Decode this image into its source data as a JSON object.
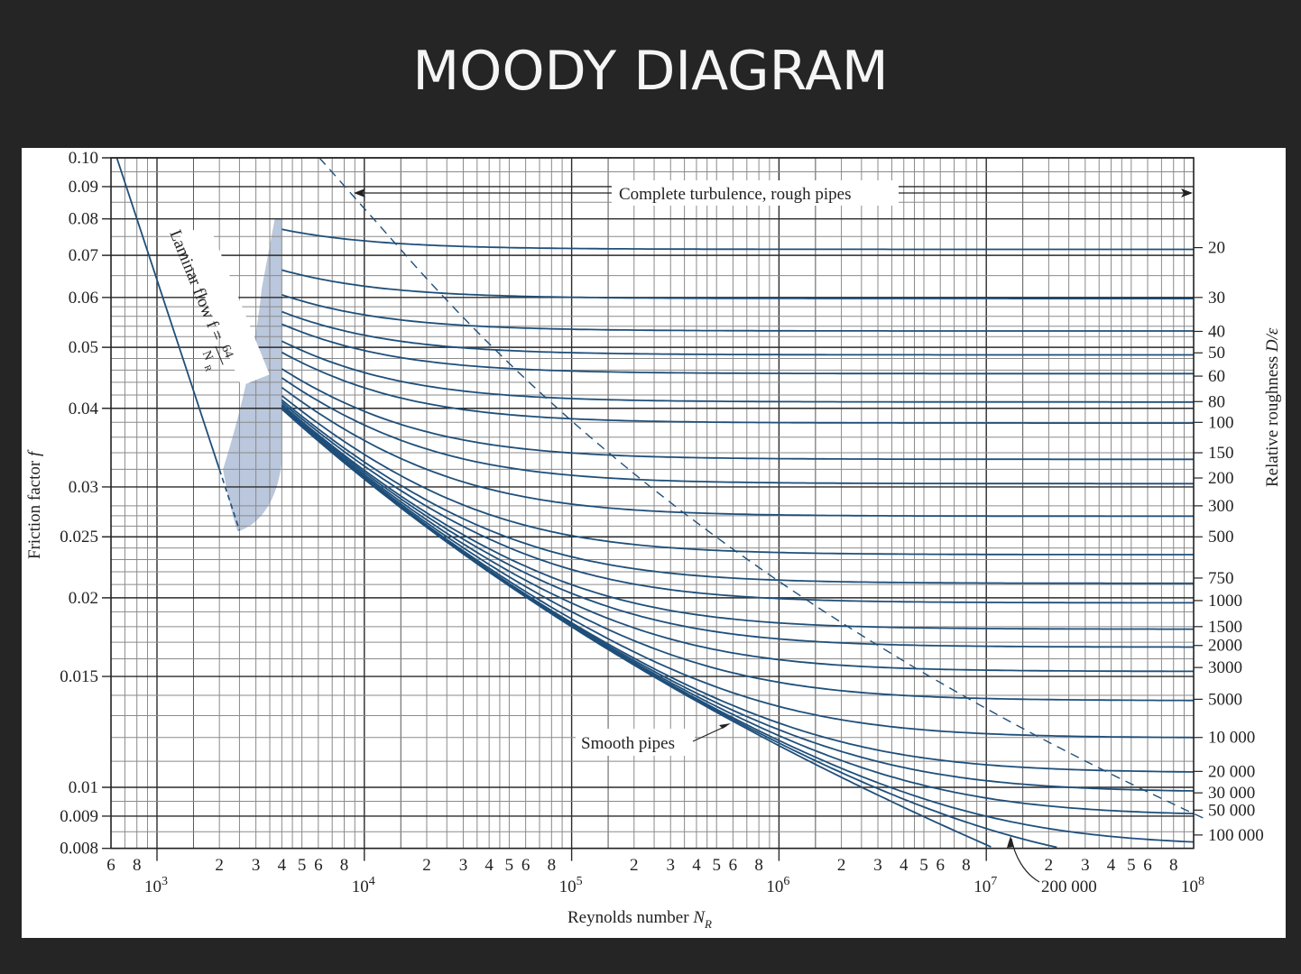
{
  "page": {
    "title": "MOODY DIAGRAM",
    "background": "#252525"
  },
  "chart_data": {
    "type": "line",
    "title": "MOODY DIAGRAM",
    "xlabel": "Reynolds number N_R",
    "ylabel": "Friction factor f",
    "y2label": "Relative roughness D/ε",
    "xscale": "log",
    "yscale": "log",
    "xlim": [
      600,
      100000000
    ],
    "ylim": [
      0.008,
      0.1
    ],
    "grid": true,
    "x_major_ticks": [
      {
        "value": 1000,
        "label": "10",
        "exp": "3"
      },
      {
        "value": 10000,
        "label": "10",
        "exp": "4"
      },
      {
        "value": 100000,
        "label": "10",
        "exp": "5"
      },
      {
        "value": 1000000,
        "label": "10",
        "exp": "6"
      },
      {
        "value": 10000000,
        "label": "10",
        "exp": "7"
      },
      {
        "value": 100000000,
        "label": "10",
        "exp": "8"
      }
    ],
    "x_minor_tick_labels": [
      "2",
      "3",
      "4",
      "5",
      "6",
      "8"
    ],
    "x_leading_tick_labels": [
      "6",
      "8"
    ],
    "y_ticks": [
      {
        "value": 0.1,
        "label": "0.10"
      },
      {
        "value": 0.09,
        "label": "0.09"
      },
      {
        "value": 0.08,
        "label": "0.08"
      },
      {
        "value": 0.07,
        "label": "0.07"
      },
      {
        "value": 0.06,
        "label": "0.06"
      },
      {
        "value": 0.05,
        "label": "0.05"
      },
      {
        "value": 0.04,
        "label": "0.04"
      },
      {
        "value": 0.03,
        "label": "0.03"
      },
      {
        "value": 0.025,
        "label": "0.025"
      },
      {
        "value": 0.02,
        "label": "0.02"
      },
      {
        "value": 0.015,
        "label": "0.015"
      },
      {
        "value": 0.01,
        "label": "0.01"
      },
      {
        "value": 0.009,
        "label": "0.009"
      },
      {
        "value": 0.008,
        "label": "0.008"
      }
    ],
    "series": [
      {
        "name": "D/ε = 20",
        "label": "20",
        "fully_rough_f": 0.072
      },
      {
        "name": "D/ε = 30",
        "label": "30",
        "fully_rough_f": 0.06
      },
      {
        "name": "D/ε = 40",
        "label": "40",
        "fully_rough_f": 0.053
      },
      {
        "name": "D/ε = 50",
        "label": "50",
        "fully_rough_f": 0.049
      },
      {
        "name": "D/ε = 60",
        "label": "60",
        "fully_rough_f": 0.045
      },
      {
        "name": "D/ε = 80",
        "label": "80",
        "fully_rough_f": 0.041
      },
      {
        "name": "D/ε = 100",
        "label": "100",
        "fully_rough_f": 0.038
      },
      {
        "name": "D/ε = 150",
        "label": "150",
        "fully_rough_f": 0.034
      },
      {
        "name": "D/ε = 200",
        "label": "200",
        "fully_rough_f": 0.031
      },
      {
        "name": "D/ε = 300",
        "label": "300",
        "fully_rough_f": 0.028
      },
      {
        "name": "D/ε = 500",
        "label": "500",
        "fully_rough_f": 0.025
      },
      {
        "name": "D/ε = 750",
        "label": "750",
        "fully_rough_f": 0.0215
      },
      {
        "name": "D/ε = 1000",
        "label": "1000",
        "fully_rough_f": 0.0198
      },
      {
        "name": "D/ε = 1500",
        "label": "1500",
        "fully_rough_f": 0.018
      },
      {
        "name": "D/ε = 2000",
        "label": "2000",
        "fully_rough_f": 0.0168
      },
      {
        "name": "D/ε = 3000",
        "label": "3000",
        "fully_rough_f": 0.0155
      },
      {
        "name": "D/ε = 5000",
        "label": "5000",
        "fully_rough_f": 0.0138
      },
      {
        "name": "D/ε = 10000",
        "label": "10 000",
        "fully_rough_f": 0.012
      },
      {
        "name": "D/ε = 20000",
        "label": "20 000",
        "fully_rough_f": 0.0106
      },
      {
        "name": "D/ε = 30000",
        "label": "30 000",
        "fully_rough_f": 0.0098
      },
      {
        "name": "D/ε = 50000",
        "label": "50 000",
        "fully_rough_f": 0.0092
      },
      {
        "name": "D/ε = 100000",
        "label": "100 000",
        "fully_rough_f": 0.0084
      },
      {
        "name": "D/ε = 200000",
        "label": "200 000",
        "fully_rough_f": 0.0077
      }
    ],
    "laminar": {
      "label_main": "Laminar flow f =",
      "numerator": "64",
      "denominator": "N",
      "denominator_sub": "R",
      "x_range": [
        600,
        2500
      ]
    },
    "critical_zone": {
      "x_range": [
        2000,
        4000
      ]
    },
    "annotations": {
      "complete_turbulence": "Complete turbulence, rough pipes",
      "smooth_pipes": "Smooth pipes",
      "callout_200000": "200 000"
    }
  },
  "colors": {
    "curve": "#1f4f7a",
    "grid_major": "#2a2a2a",
    "grid_minor": "#8a8a8a",
    "zone": "#b3c1d8"
  }
}
